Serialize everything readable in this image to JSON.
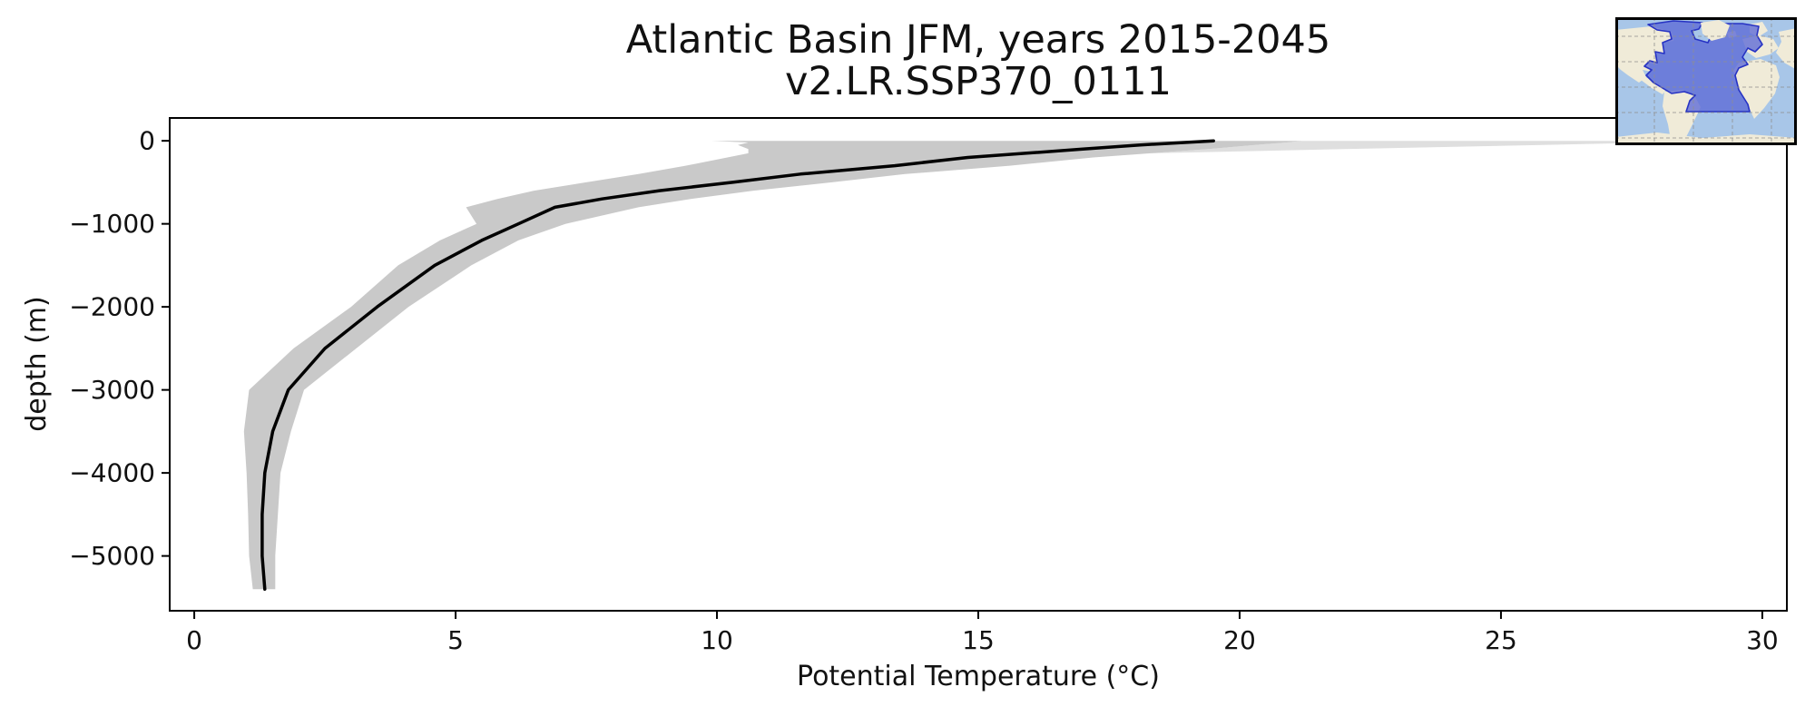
{
  "chart_data": {
    "type": "line",
    "variant": "vertical-profile-with-envelope",
    "title_line1": "Atlantic Basin JFM, years 2015-2045",
    "title_line2": "v2.LR.SSP370_0111",
    "xlabel": "Potential Temperature (°C)",
    "ylabel": "depth (m)",
    "x_is": "temperature_celsius",
    "y_is": "depth_meters",
    "xlim": [
      -0.47,
      30.47
    ],
    "ylim": [
      -5660,
      275
    ],
    "xticks": [
      0,
      5,
      10,
      15,
      20,
      25,
      30
    ],
    "yticks": [
      0,
      -1000,
      -2000,
      -3000,
      -4000,
      -5000
    ],
    "grid": false,
    "legend": "none",
    "series": [
      {
        "role": "mean",
        "name": "mean potential temperature profile",
        "color": "#000000",
        "depth_m": [
          0,
          -20,
          -50,
          -100,
          -150,
          -200,
          -300,
          -400,
          -500,
          -600,
          -700,
          -800,
          -1000,
          -1200,
          -1500,
          -2000,
          -2500,
          -3000,
          -3500,
          -4000,
          -4500,
          -5000,
          -5400
        ],
        "temp_c": [
          19.5,
          18.95,
          18.1,
          17.0,
          15.9,
          14.8,
          13.4,
          11.6,
          10.3,
          8.9,
          7.8,
          6.9,
          6.2,
          5.5,
          4.6,
          3.5,
          2.5,
          1.8,
          1.5,
          1.35,
          1.3,
          1.3,
          1.35
        ]
      },
      {
        "role": "envelope",
        "name": "spread envelope",
        "fill_color": "#c9c9c9",
        "depth_m": [
          0,
          -20,
          -50,
          -100,
          -150,
          -200,
          -300,
          -400,
          -500,
          -600,
          -700,
          -800,
          -1000,
          -1200,
          -1500,
          -2000,
          -2500,
          -3000,
          -3500,
          -4000,
          -4500,
          -5000,
          -5400
        ],
        "temp_min_c": [
          9.9,
          10.6,
          10.4,
          10.6,
          10.6,
          10.2,
          9.4,
          8.5,
          7.5,
          6.5,
          5.8,
          5.2,
          5.4,
          4.7,
          3.9,
          3.0,
          1.9,
          1.05,
          0.95,
          1.0,
          1.03,
          1.05,
          1.12
        ],
        "temp_max_c": [
          21.2,
          20.9,
          20.3,
          19.4,
          18.3,
          17.2,
          15.6,
          13.6,
          12.2,
          10.7,
          9.5,
          8.5,
          7.1,
          6.2,
          5.3,
          4.1,
          3.1,
          2.1,
          1.85,
          1.65,
          1.6,
          1.55,
          1.55
        ]
      },
      {
        "role": "surface_envelope",
        "name": "surface maximum envelope",
        "fill_color": "#dfdfdf",
        "depth_m": [
          0,
          -20,
          -50,
          -100,
          -150
        ],
        "temp_max_c": [
          30.4,
          28.0,
          25.8,
          22.0,
          18.3
        ]
      }
    ],
    "inset_map": {
      "description": "world map with Atlantic basin region highlighted",
      "ocean_color": "#a8c6e8",
      "land_color": "#f0ebd8",
      "region_fill": "#5c69d6",
      "region_border": "#2733c4",
      "gridline_color": "#8f8f8f",
      "frame_color": "#000000"
    }
  }
}
